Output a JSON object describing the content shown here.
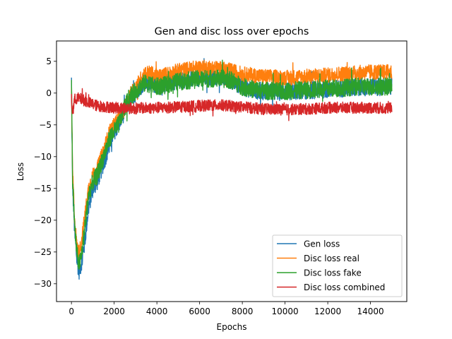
{
  "chart_data": {
    "type": "line",
    "title": "Gen and disc loss over epochs",
    "xlabel": "Epochs",
    "ylabel": "Loss",
    "xlim": [
      -700,
      15700
    ],
    "ylim": [
      -32.8,
      8.2
    ],
    "xticks": [
      0,
      2000,
      4000,
      6000,
      8000,
      10000,
      12000,
      14000
    ],
    "xtick_labels": [
      "0",
      "2000",
      "4000",
      "6000",
      "8000",
      "10000",
      "12000",
      "14000"
    ],
    "yticks": [
      5,
      0,
      -5,
      -10,
      -15,
      -20,
      -25,
      -30
    ],
    "ytick_labels": [
      "5",
      "0",
      "−5",
      "−10",
      "−15",
      "−20",
      "−25",
      "−30"
    ],
    "grid": false,
    "legend_position": "lower right",
    "series": [
      {
        "name": "Gen loss",
        "color": "#1f77b4",
        "noise": 1.4,
        "x": [
          0,
          50,
          150,
          250,
          350,
          450,
          600,
          800,
          1000,
          1200,
          1400,
          1600,
          1800,
          2000,
          2200,
          2400,
          2600,
          2800,
          3000,
          3200,
          3400,
          3600,
          3800,
          4000,
          4500,
          5000,
          5500,
          6000,
          6500,
          7000,
          7500,
          8000,
          8500,
          9000,
          9500,
          10000,
          10500,
          11000,
          11500,
          12000,
          12500,
          13000,
          13500,
          14000,
          14500,
          15000
        ],
        "y": [
          2,
          -14,
          -22,
          -26,
          -28,
          -27,
          -24,
          -18,
          -15,
          -14,
          -12,
          -10,
          -8,
          -6,
          -5,
          -3.5,
          -2,
          -1,
          0,
          1,
          1.5,
          1.8,
          1.5,
          1.2,
          1.5,
          2,
          2.2,
          2.4,
          2.5,
          2.5,
          2,
          1,
          0.5,
          0.3,
          0.2,
          0.2,
          0.3,
          0.4,
          0.5,
          0.6,
          0.7,
          0.8,
          0.9,
          1.0,
          1.0,
          1.0
        ]
      },
      {
        "name": "Disc loss real",
        "color": "#ff7f0e",
        "noise": 1.2,
        "x": [
          0,
          50,
          150,
          250,
          350,
          450,
          600,
          800,
          1000,
          1200,
          1400,
          1600,
          1800,
          2000,
          2200,
          2400,
          2600,
          2800,
          3000,
          3200,
          3400,
          3600,
          3800,
          4000,
          4500,
          5000,
          5500,
          6000,
          6500,
          7000,
          7500,
          8000,
          8500,
          9000,
          9500,
          10000,
          10500,
          11000,
          11500,
          12000,
          12500,
          13000,
          13500,
          14000,
          14500,
          15000
        ],
        "y": [
          1,
          -12,
          -20,
          -24,
          -25,
          -24,
          -20,
          -15,
          -13,
          -12,
          -10,
          -8,
          -6,
          -5,
          -4,
          -3,
          -1.5,
          0,
          1,
          2,
          3,
          3.2,
          3,
          2.5,
          3,
          3.5,
          3.8,
          4,
          4,
          3.8,
          3.5,
          3,
          2.8,
          2.6,
          2.5,
          2.4,
          2.5,
          2.6,
          2.7,
          2.8,
          3.0,
          3.1,
          3.2,
          3.3,
          3.3,
          3.3
        ]
      },
      {
        "name": "Disc loss fake",
        "color": "#2ca02c",
        "noise": 1.4,
        "x": [
          0,
          50,
          150,
          250,
          350,
          450,
          600,
          800,
          1000,
          1200,
          1400,
          1600,
          1800,
          2000,
          2200,
          2400,
          2600,
          2800,
          3000,
          3200,
          3400,
          3600,
          3800,
          4000,
          4500,
          5000,
          5500,
          6000,
          6500,
          7000,
          7500,
          8000,
          8500,
          9000,
          9500,
          10000,
          10500,
          11000,
          11500,
          12000,
          12500,
          13000,
          13500,
          14000,
          14500,
          15000
        ],
        "y": [
          1.5,
          -13,
          -21,
          -25,
          -27,
          -26,
          -22,
          -16,
          -14,
          -13,
          -11,
          -9,
          -7,
          -6,
          -5,
          -3,
          -1.5,
          -0.5,
          0.3,
          1,
          1.5,
          1.5,
          1.2,
          1,
          1.3,
          1.8,
          2.0,
          2.2,
          2.3,
          2.3,
          2,
          1,
          0.6,
          0.4,
          0.3,
          0.3,
          0.4,
          0.5,
          0.6,
          0.7,
          0.8,
          0.9,
          1.0,
          1.0,
          1.0,
          1.1
        ]
      },
      {
        "name": "Disc loss combined",
        "color": "#d62728",
        "noise": 0.9,
        "x": [
          0,
          50,
          150,
          300,
          500,
          800,
          1200,
          2000,
          3000,
          4000,
          5000,
          6000,
          7000,
          8000,
          9000,
          10000,
          11000,
          12000,
          13000,
          14000,
          15000
        ],
        "y": [
          -1,
          -3,
          -1,
          -0.8,
          -1,
          -1.5,
          -2,
          -2.3,
          -2.4,
          -2.3,
          -2.2,
          -2.0,
          -1.9,
          -2.2,
          -2.5,
          -2.6,
          -2.5,
          -2.3,
          -2.3,
          -2.3,
          -2.4
        ]
      }
    ]
  }
}
